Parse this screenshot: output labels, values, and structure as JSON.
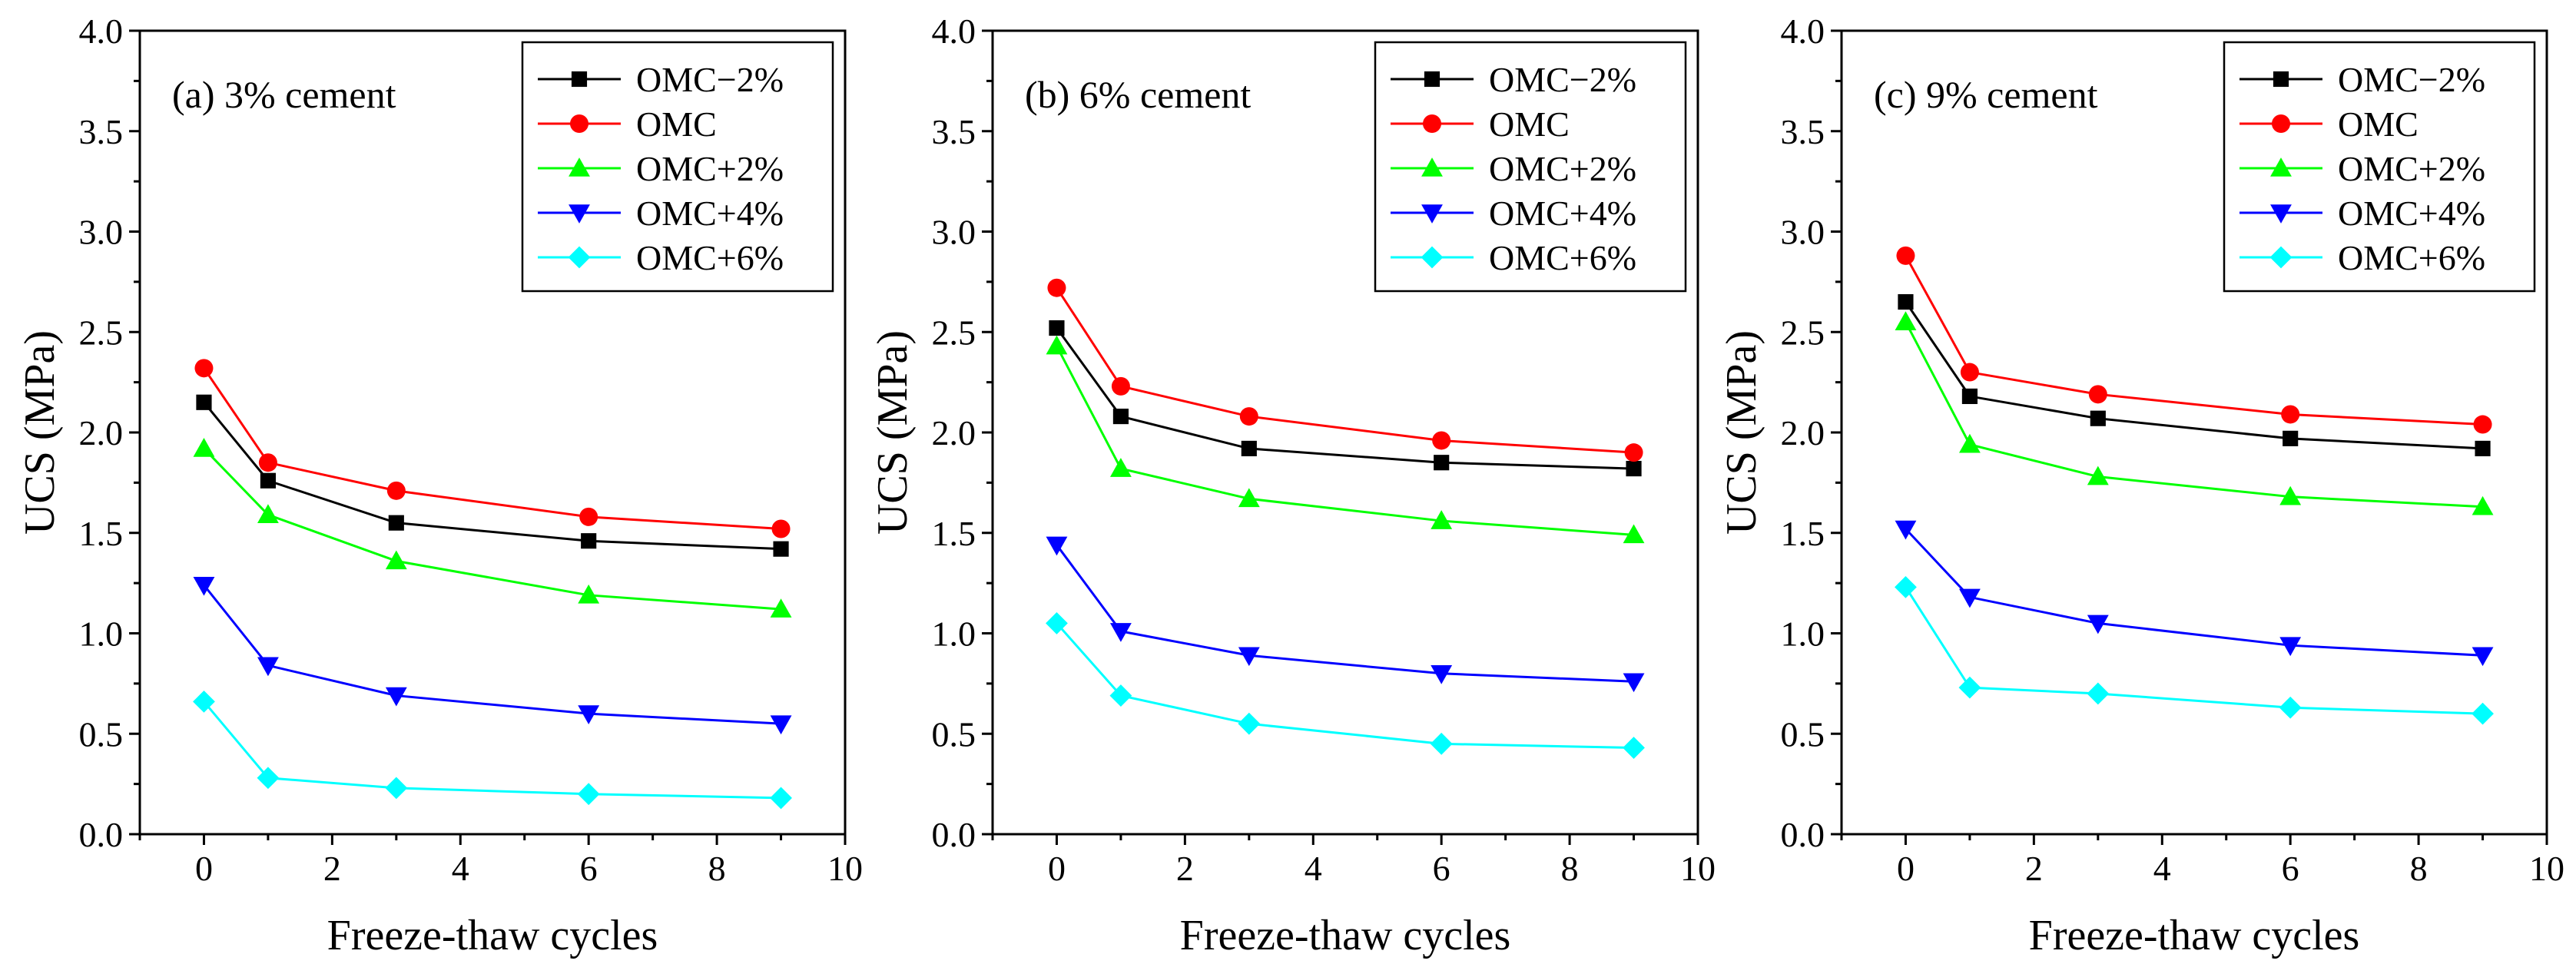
{
  "chart_data": [
    {
      "type": "line",
      "title": "(a) 3% cement",
      "xlabel": "Freeze-thaw cycles",
      "ylabel": "UCS (MPa)",
      "xlim": [
        -1,
        10
      ],
      "ylim": [
        0,
        4
      ],
      "xticks": [
        "0",
        "2",
        "4",
        "6",
        "8",
        "10"
      ],
      "yticks": [
        "0.0",
        "0.5",
        "1.0",
        "1.5",
        "2.0",
        "2.5",
        "3.0",
        "3.5",
        "4.0"
      ],
      "legend_position": "top-right",
      "x": [
        0,
        1,
        3,
        6,
        9
      ],
      "series": [
        {
          "name": "OMC−2%",
          "color": "#000000",
          "marker": "square",
          "values": [
            2.15,
            1.76,
            1.55,
            1.46,
            1.42
          ]
        },
        {
          "name": "OMC",
          "color": "#ff0000",
          "marker": "circle",
          "values": [
            2.32,
            1.85,
            1.71,
            1.58,
            1.52
          ]
        },
        {
          "name": "OMC+2%",
          "color": "#00ff00",
          "marker": "triangle-up",
          "values": [
            1.92,
            1.59,
            1.36,
            1.19,
            1.12
          ]
        },
        {
          "name": "OMC+4%",
          "color": "#0000ff",
          "marker": "triangle-down",
          "values": [
            1.24,
            0.84,
            0.69,
            0.6,
            0.55
          ]
        },
        {
          "name": "OMC+6%",
          "color": "#00ffff",
          "marker": "diamond",
          "values": [
            0.66,
            0.28,
            0.23,
            0.2,
            0.18
          ]
        }
      ]
    },
    {
      "type": "line",
      "title": "(b) 6% cement",
      "xlabel": "Freeze-thaw cycles",
      "ylabel": "UCS (MPa)",
      "xlim": [
        -1,
        10
      ],
      "ylim": [
        0,
        4
      ],
      "xticks": [
        "0",
        "2",
        "4",
        "6",
        "8",
        "10"
      ],
      "yticks": [
        "0.0",
        "0.5",
        "1.0",
        "1.5",
        "2.0",
        "2.5",
        "3.0",
        "3.5",
        "4.0"
      ],
      "legend_position": "top-right",
      "x": [
        0,
        1,
        3,
        6,
        9
      ],
      "series": [
        {
          "name": "OMC−2%",
          "color": "#000000",
          "marker": "square",
          "values": [
            2.52,
            2.08,
            1.92,
            1.85,
            1.82
          ]
        },
        {
          "name": "OMC",
          "color": "#ff0000",
          "marker": "circle",
          "values": [
            2.72,
            2.23,
            2.08,
            1.96,
            1.9
          ]
        },
        {
          "name": "OMC+2%",
          "color": "#00ff00",
          "marker": "triangle-up",
          "values": [
            2.43,
            1.82,
            1.67,
            1.56,
            1.49
          ]
        },
        {
          "name": "OMC+4%",
          "color": "#0000ff",
          "marker": "triangle-down",
          "values": [
            1.44,
            1.01,
            0.89,
            0.8,
            0.76
          ]
        },
        {
          "name": "OMC+6%",
          "color": "#00ffff",
          "marker": "diamond",
          "values": [
            1.05,
            0.69,
            0.55,
            0.45,
            0.43
          ]
        }
      ]
    },
    {
      "type": "line",
      "title": "(c) 9% cement",
      "xlabel": "Freeze-thaw cycles",
      "ylabel": "UCS (MPa)",
      "xlim": [
        -1,
        10
      ],
      "ylim": [
        0,
        4
      ],
      "xticks": [
        "0",
        "2",
        "4",
        "6",
        "8",
        "10"
      ],
      "yticks": [
        "0.0",
        "0.5",
        "1.0",
        "1.5",
        "2.0",
        "2.5",
        "3.0",
        "3.5",
        "4.0"
      ],
      "legend_position": "top-right",
      "x": [
        0,
        1,
        3,
        6,
        9
      ],
      "series": [
        {
          "name": "OMC−2%",
          "color": "#000000",
          "marker": "square",
          "values": [
            2.65,
            2.18,
            2.07,
            1.97,
            1.92
          ]
        },
        {
          "name": "OMC",
          "color": "#ff0000",
          "marker": "circle",
          "values": [
            2.88,
            2.3,
            2.19,
            2.09,
            2.04
          ]
        },
        {
          "name": "OMC+2%",
          "color": "#00ff00",
          "marker": "triangle-up",
          "values": [
            2.55,
            1.94,
            1.78,
            1.68,
            1.63
          ]
        },
        {
          "name": "OMC+4%",
          "color": "#0000ff",
          "marker": "triangle-down",
          "values": [
            1.52,
            1.18,
            1.05,
            0.94,
            0.89
          ]
        },
        {
          "name": "OMC+6%",
          "color": "#00ffff",
          "marker": "diamond",
          "values": [
            1.23,
            0.73,
            0.7,
            0.63,
            0.6
          ]
        }
      ]
    }
  ]
}
